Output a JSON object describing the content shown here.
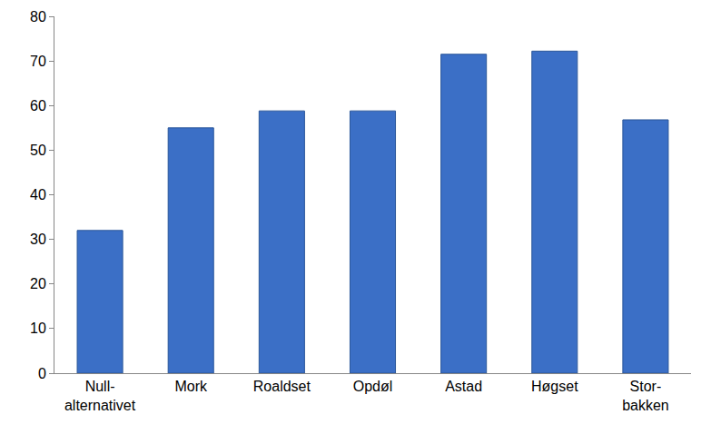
{
  "chart_data": {
    "type": "bar",
    "categories": [
      "Null-\nalternativet",
      "Mork",
      "Roaldset",
      "Opdøl",
      "Astad",
      "Høgset",
      "Stor-\nbakken"
    ],
    "values": [
      32,
      55,
      58.8,
      58.8,
      71.5,
      72.2,
      56.8
    ],
    "color": "#3b6fc6",
    "ylim": [
      0,
      80
    ],
    "yticks": [
      0,
      10,
      20,
      30,
      40,
      50,
      60,
      70,
      80
    ],
    "grid": false
  }
}
